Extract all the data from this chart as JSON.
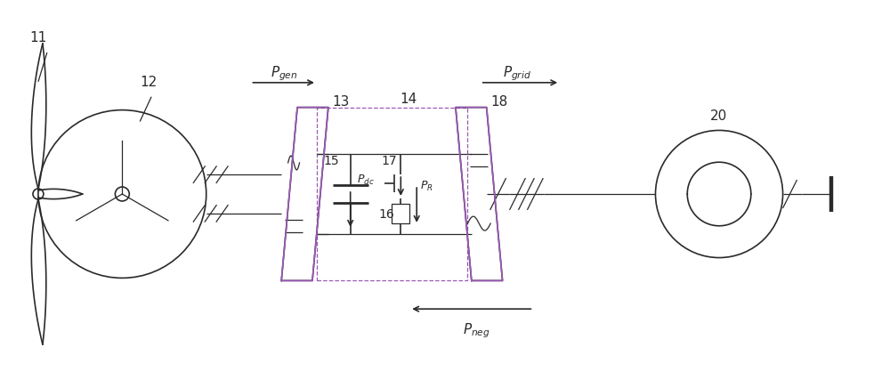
{
  "bg_color": "#ffffff",
  "lc": "#2a2a2a",
  "purple": "#9b59b6",
  "fig_width": 10.0,
  "fig_height": 4.36,
  "dpi": 100
}
